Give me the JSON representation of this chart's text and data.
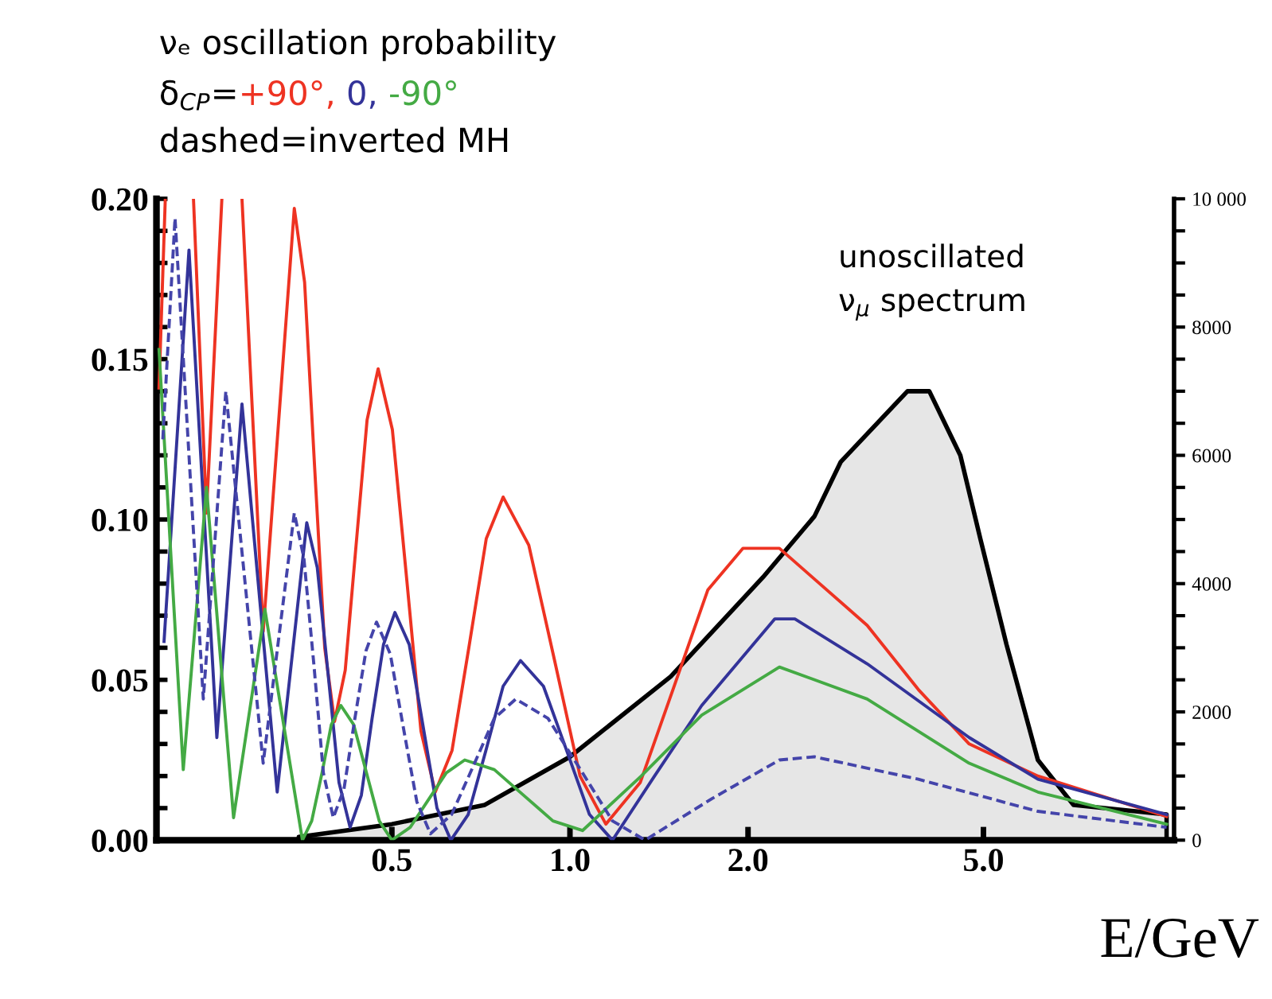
{
  "chart_data": {
    "type": "line",
    "title": "νₑ oscillation probability",
    "legend_title": "δ$_{CP}$=",
    "annotations": [
      "dashed=inverted MH",
      "unoscillated\nν$_{μ}$ spectrum"
    ],
    "xlabel": "E/GeV",
    "log": "x",
    "xlim": [
      0.2,
      10.5
    ],
    "xticks": [
      {
        "value": 0.5,
        "label": "0.5"
      },
      {
        "value": 1,
        "label": "1.0"
      },
      {
        "value": 2,
        "label": "2.0"
      },
      {
        "value": 5,
        "label": "5.0"
      }
    ],
    "ylim": [
      0,
      0.2
    ],
    "yticks": [
      {
        "value": 0,
        "label": "0.00"
      },
      {
        "value": 0.01,
        "label": null
      },
      {
        "value": 0.02,
        "label": null
      },
      {
        "value": 0.03,
        "label": null
      },
      {
        "value": 0.04,
        "label": null
      },
      {
        "value": 0.05,
        "label": "0.05"
      },
      {
        "value": 0.06,
        "label": null
      },
      {
        "value": 0.07,
        "label": null
      },
      {
        "value": 0.08,
        "label": null
      },
      {
        "value": 0.09,
        "label": null
      },
      {
        "value": 0.1,
        "label": "0.10"
      },
      {
        "value": 0.11,
        "label": null
      },
      {
        "value": 0.12,
        "label": null
      },
      {
        "value": 0.13,
        "label": null
      },
      {
        "value": 0.14,
        "label": null
      },
      {
        "value": 0.15,
        "label": "0.15"
      },
      {
        "value": 0.16,
        "label": null
      },
      {
        "value": 0.17,
        "label": null
      },
      {
        "value": 0.18,
        "label": null
      },
      {
        "value": 0.19,
        "label": null
      },
      {
        "value": 0.2,
        "label": "0.20"
      }
    ],
    "y2lim": [
      0,
      10000
    ],
    "y2ticks": [
      0,
      {
        "value": 500,
        "label": null
      },
      {
        "value": 1000,
        "label": null
      },
      {
        "value": 1500,
        "label": null
      },
      2000,
      {
        "value": 2500,
        "label": null
      },
      {
        "value": 3000,
        "label": null
      },
      {
        "value": 3500,
        "label": null
      },
      4000,
      {
        "value": 4500,
        "label": null
      },
      {
        "value": 5000,
        "label": null
      },
      {
        "value": 5500,
        "label": null
      },
      6000,
      {
        "value": 6500,
        "label": null
      },
      {
        "value": 7000,
        "label": null
      },
      {
        "value": 7500,
        "label": null
      },
      8000,
      {
        "value": 8500,
        "label": null
      },
      {
        "value": 9000,
        "label": null
      },
      {
        "value": 9500,
        "label": null
      },
      {
        "value": 10000,
        "label": "10 000"
      }
    ],
    "series": [
      {
        "type": "area",
        "axis": "y2",
        "color": "#e6e6e6",
        "x": [
          0.348,
          0.5,
          0.718,
          1.0,
          1.48,
          2.12,
          2.59,
          2.87,
          3.72,
          4.05,
          4.57,
          4.94,
          5.47,
          6.18,
          7.1,
          10.2
        ],
        "values": [
          50,
          250,
          550,
          1300,
          2550,
          4100,
          5050,
          5900,
          7000,
          7000,
          6000,
          4700,
          3050,
          1250,
          550,
          400
        ]
      },
      {
        "name": "+90°,",
        "color": "#ee3322",
        "line_style": "solid",
        "x": [
          0.202,
          0.207,
          0.219,
          0.231,
          0.243,
          0.258,
          0.268,
          0.279,
          0.303,
          0.342,
          0.356,
          0.37,
          0.385,
          0.4,
          0.417,
          0.435,
          0.454,
          0.474,
          0.501,
          0.53,
          0.56,
          0.592,
          0.632,
          0.676,
          0.722,
          0.771,
          0.852,
          0.942,
          1.04,
          1.15,
          1.315,
          1.5,
          1.71,
          1.96,
          2.26,
          3.18,
          3.88,
          4.73,
          6.18,
          10.2
        ],
        "values": [
          0.141,
          0.2,
          null,
          0.2,
          0.102,
          0.2,
          null,
          0.2,
          0.065,
          0.197,
          0.174,
          0.117,
          0.06,
          0.037,
          0.053,
          0.092,
          0.131,
          0.147,
          0.128,
          0.081,
          0.034,
          0.015,
          0.028,
          0.061,
          0.094,
          0.107,
          0.092,
          0.056,
          0.02,
          0.005,
          0.018,
          0.048,
          0.078,
          0.091,
          0.091,
          0.067,
          0.047,
          0.03,
          0.02,
          0.0074
        ]
      },
      {
        "name": "0,",
        "color": "#333399",
        "line_style": "solid",
        "x": [
          0.206,
          0.227,
          0.253,
          0.279,
          0.32,
          0.359,
          0.374,
          0.39,
          0.407,
          0.425,
          0.444,
          0.463,
          0.484,
          0.506,
          0.535,
          0.564,
          0.596,
          0.629,
          0.673,
          0.721,
          0.771,
          0.825,
          0.902,
          0.987,
          1.079,
          1.18,
          1.39,
          1.67,
          2.22,
          2.4,
          3.18,
          4.73,
          6.18,
          10.2
        ],
        "values": [
          0.062,
          0.184,
          0.032,
          0.136,
          0.015,
          0.099,
          0.085,
          0.052,
          0.018,
          0.004,
          0.014,
          0.038,
          0.061,
          0.071,
          0.061,
          0.036,
          0.01,
          0.0,
          0.008,
          0.028,
          0.048,
          0.056,
          0.048,
          0.028,
          0.008,
          0.0,
          0.02,
          0.042,
          0.069,
          0.069,
          0.055,
          0.032,
          0.019,
          0.008
        ]
      },
      {
        "name": "-90°",
        "color": "#44aa44",
        "line_style": "solid",
        "x": [
          0.202,
          0.222,
          0.243,
          0.27,
          0.305,
          0.353,
          0.366,
          0.381,
          0.395,
          0.41,
          0.431,
          0.453,
          0.476,
          0.5,
          0.537,
          0.576,
          0.618,
          0.664,
          0.745,
          0.835,
          0.936,
          1.05,
          1.32,
          1.67,
          2.26,
          3.18,
          4.73,
          6.18,
          10.2
        ],
        "values": [
          0.153,
          0.022,
          0.11,
          0.007,
          0.072,
          0.0,
          0.006,
          0.021,
          0.036,
          0.042,
          0.036,
          0.021,
          0.006,
          0.0,
          0.004,
          0.0125,
          0.021,
          0.025,
          0.022,
          0.014,
          0.006,
          0.003,
          0.02,
          0.039,
          0.054,
          0.044,
          0.024,
          0.015,
          0.005
        ]
      },
      {
        "color": "#4444aa",
        "line_style": "dashed",
        "x": [
          0.205,
          0.215,
          0.24,
          0.262,
          0.303,
          0.342,
          0.355,
          0.369,
          0.383,
          0.398,
          0.415,
          0.433,
          0.452,
          0.471,
          0.497,
          0.523,
          0.551,
          0.581,
          0.631,
          0.686,
          0.745,
          0.81,
          0.918,
          1.042,
          1.18,
          1.34,
          1.74,
          2.26,
          2.59,
          3.88,
          6.18,
          10.2
        ],
        "values": [
          0.125,
          0.194,
          0.044,
          0.14,
          0.024,
          0.102,
          0.088,
          0.055,
          0.021,
          0.007,
          0.016,
          0.038,
          0.059,
          0.068,
          0.058,
          0.035,
          0.012,
          0.002,
          0.008,
          0.023,
          0.038,
          0.044,
          0.038,
          0.022,
          0.006,
          0.0,
          0.013,
          0.025,
          0.026,
          0.019,
          0.009,
          0.004
        ]
      }
    ]
  }
}
